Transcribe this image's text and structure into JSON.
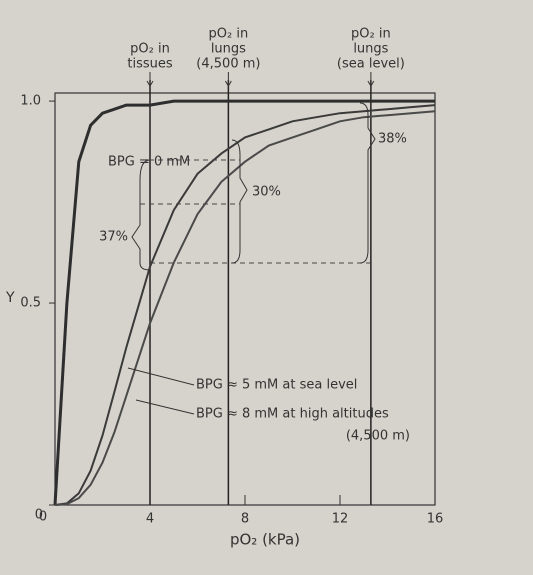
{
  "chart_data": {
    "type": "line",
    "x_label": "pO₂ (kPa)",
    "y_label": "Y",
    "x": [
      0,
      0.5,
      1,
      1.5,
      2,
      2.5,
      3,
      4,
      5,
      6,
      7,
      8,
      9,
      10,
      11,
      12,
      13,
      14,
      15,
      16
    ],
    "series": [
      {
        "name": "BPG = 0 mM",
        "color": "#2e2e2e",
        "values": [
          0,
          0.5,
          0.85,
          0.94,
          0.97,
          0.98,
          0.99,
          0.99,
          1,
          1,
          1,
          1,
          1,
          1,
          1,
          1,
          1,
          1,
          1,
          1
        ]
      },
      {
        "name": "BPG ≈ 5 mM at sea level",
        "color": "#3a3a3a",
        "values": [
          0,
          0.004,
          0.029,
          0.085,
          0.172,
          0.28,
          0.39,
          0.59,
          0.73,
          0.82,
          0.87,
          0.91,
          0.93,
          0.95,
          0.96,
          0.97,
          0.975,
          0.98,
          0.985,
          0.99
        ]
      },
      {
        "name": "BPG ≈ 8 mM at high altitudes",
        "color": "#4a4a4a",
        "values": [
          0,
          0.002,
          0.017,
          0.05,
          0.105,
          0.18,
          0.27,
          0.45,
          0.6,
          0.72,
          0.8,
          0.85,
          0.89,
          0.91,
          0.93,
          0.95,
          0.96,
          0.965,
          0.97,
          0.975
        ]
      }
    ],
    "reference_lines": [
      {
        "x": 4,
        "label": [
          "pO₂ in",
          "tissues"
        ]
      },
      {
        "x": 7.3,
        "label": [
          "pO₂ in",
          "lungs",
          "(4,500 m)"
        ]
      },
      {
        "x": 13.3,
        "label": [
          "pO₂ in",
          "lungs",
          "(sea level)"
        ]
      }
    ],
    "annotations": [
      "37%",
      "30%",
      "38%",
      "(4,500 m)"
    ],
    "xlim": [
      0,
      16
    ],
    "ylim": [
      0,
      1.02
    ],
    "xticks": [
      0,
      4,
      8,
      12,
      16
    ],
    "yticks": [
      0,
      0.5,
      {
        "value": 1,
        "label": "1.0"
      }
    ],
    "grid": false
  }
}
